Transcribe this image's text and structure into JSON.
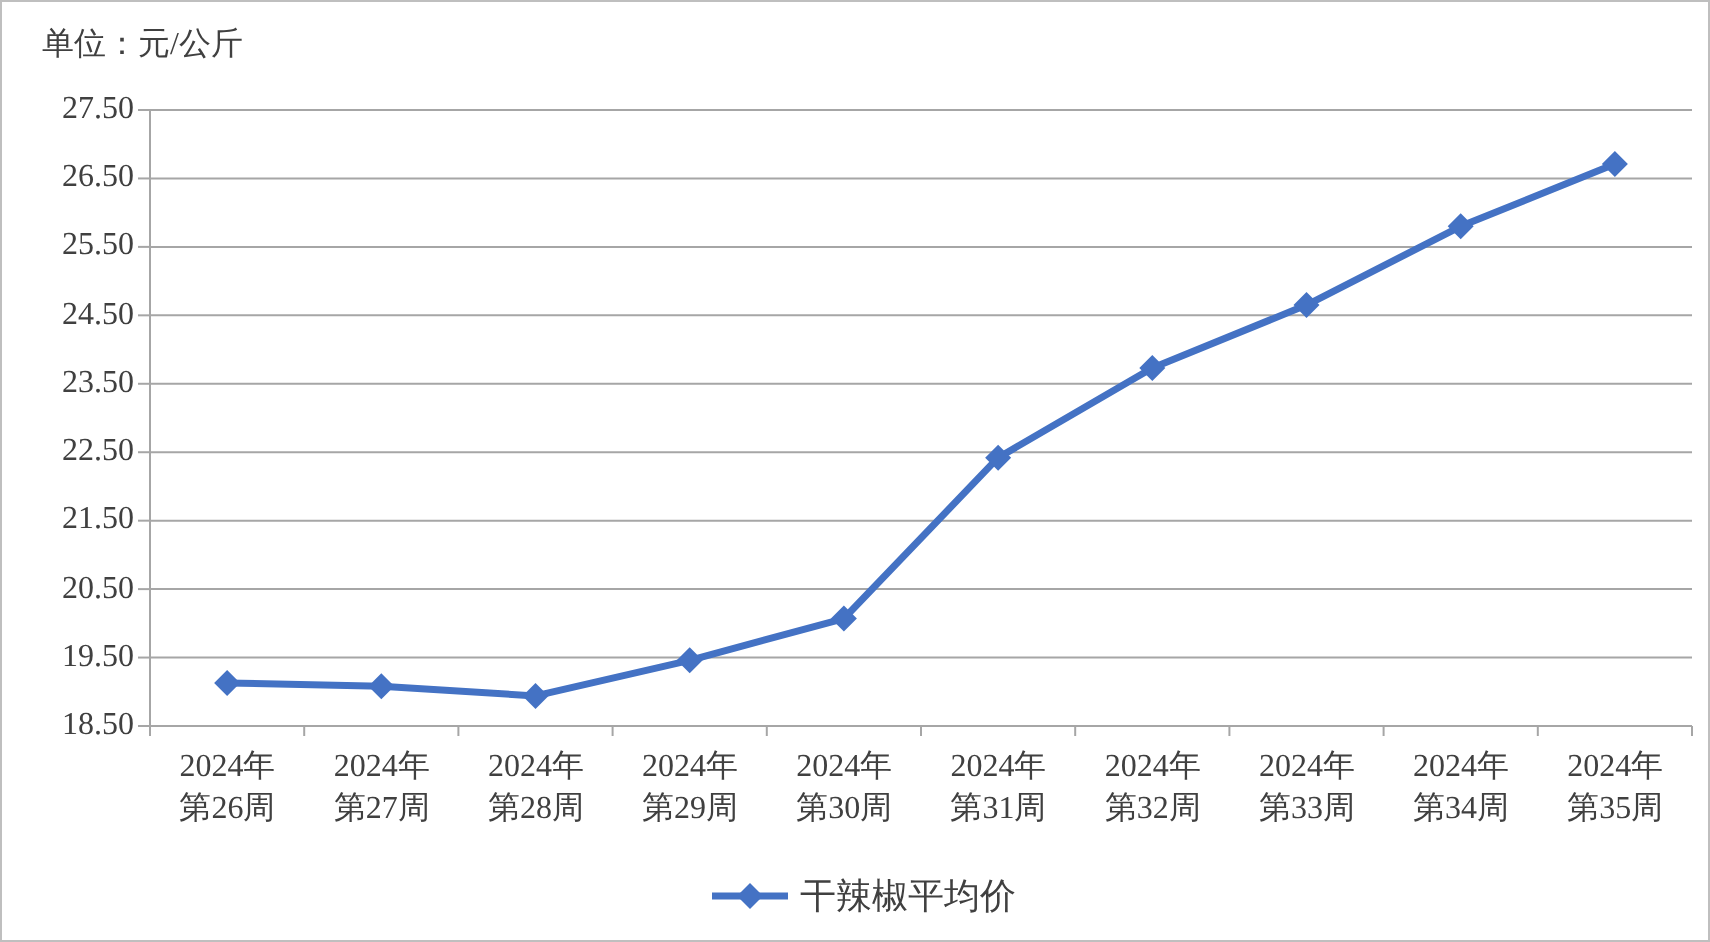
{
  "chart_data": {
    "type": "line",
    "ylabel": "单位：元/公斤",
    "categories": [
      "2024年第26周",
      "2024年第27周",
      "2024年第28周",
      "2024年第29周",
      "2024年第30周",
      "2024年第31周",
      "2024年第32周",
      "2024年第33周",
      "2024年第34周",
      "2024年第35周"
    ],
    "series": [
      {
        "name": "干辣椒平均价",
        "color": "#4472c4",
        "values": [
          19.13,
          19.08,
          18.94,
          19.46,
          20.07,
          22.42,
          23.73,
          24.65,
          25.8,
          26.71
        ]
      }
    ],
    "ylim": [
      18.5,
      27.5
    ],
    "yticks": [
      {
        "value": 18.5,
        "label": "18.50"
      },
      {
        "value": 19.5,
        "label": "19.50"
      },
      {
        "value": 20.5,
        "label": "20.50"
      },
      {
        "value": 21.5,
        "label": "21.50"
      },
      {
        "value": 22.5,
        "label": "22.50"
      },
      {
        "value": 23.5,
        "label": "23.50"
      },
      {
        "value": 24.5,
        "label": "24.50"
      },
      {
        "value": 25.5,
        "label": "25.50"
      },
      {
        "value": 26.5,
        "label": "26.50"
      },
      {
        "value": 27.5,
        "label": "27.50"
      }
    ],
    "grid": "y",
    "legend": "bottom",
    "marker": "diamond",
    "line_style": "solid"
  }
}
